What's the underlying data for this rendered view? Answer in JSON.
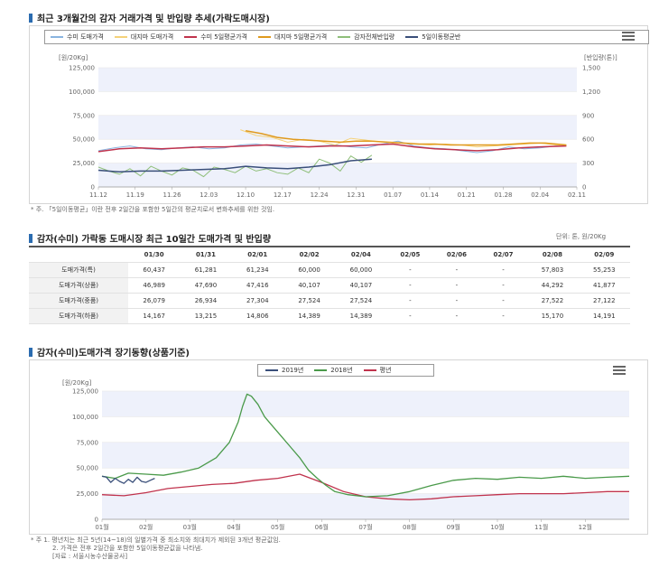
{
  "section1": {
    "title": "최근 3개월간의 감자 거래가격 및 반입량 추세(가락도매시장)",
    "legend": [
      {
        "label": "수미 도매가격",
        "color": "#8ab4e0"
      },
      {
        "label": "대지마 도매가격",
        "color": "#f5d27a"
      },
      {
        "label": "수미 5일평균가격",
        "color": "#c0334d"
      },
      {
        "label": "대지마 5일평균가격",
        "color": "#e09a1e"
      },
      {
        "label": "감자전체반입량",
        "color": "#8fbf7a"
      },
      {
        "label": "5일이동평균반",
        "color": "#3a4f7a"
      }
    ],
    "y_left_unit": "[원/20Kg]",
    "y_right_unit": "[반입량(톤)]",
    "note": "* 주. 「5일이동평균」이란 전후 2일간을 포함한 5일간의 평균치로서 변화추세를 위한 것임."
  },
  "section2": {
    "title": "감자(수미) 가락동 도매시장 최근 10일간 도매가격 및 반입량",
    "unit": "단위: 톤, 원/20Kg",
    "columns": [
      "01/30",
      "01/31",
      "02/01",
      "02/02",
      "02/04",
      "02/05",
      "02/06",
      "02/07",
      "02/08",
      "02/09"
    ],
    "rows": [
      {
        "label": "도매가격(특)",
        "values": [
          "60,437",
          "61,281",
          "61,234",
          "60,000",
          "60,000",
          "-",
          "-",
          "-",
          "57,803",
          "55,253"
        ]
      },
      {
        "label": "도매가격(상품)",
        "values": [
          "46,989",
          "47,690",
          "47,416",
          "40,107",
          "40,107",
          "-",
          "-",
          "-",
          "44,292",
          "41,877"
        ]
      },
      {
        "label": "도매가격(중품)",
        "values": [
          "26,079",
          "26,934",
          "27,304",
          "27,524",
          "27,524",
          "-",
          "-",
          "-",
          "27,522",
          "27,122"
        ]
      },
      {
        "label": "도매가격(하품)",
        "values": [
          "14,167",
          "13,215",
          "14,806",
          "14,389",
          "14,389",
          "-",
          "-",
          "-",
          "15,170",
          "14,191"
        ]
      }
    ]
  },
  "section3": {
    "title": "감자(수미)도매가격 장기동향(상품기준)",
    "legend": [
      {
        "label": "2019년",
        "color": "#3a4f7a"
      },
      {
        "label": "2018년",
        "color": "#4a9a4a"
      },
      {
        "label": "평년",
        "color": "#c0334d"
      }
    ],
    "y_unit": "[원/20Kg]",
    "notes": [
      "* 주 1. 평년치는 최근 5년(14~18)의 일별가격 중 최소치와 최대치가 제외된 3개년 평균값임.",
      "2. 가격은 전후 2일간을 포함한 5일이동평균값을 나타냄.",
      "[자료 : 서울시농수산물공사]"
    ]
  },
  "chart_data": [
    {
      "type": "line",
      "title": "최근 3개월간의 감자 거래가격 및 반입량 추세(가락도매시장)",
      "x_ticks": [
        "11.12",
        "11.19",
        "11.26",
        "12.03",
        "12.10",
        "12.17",
        "12.24",
        "12.31",
        "01.07",
        "01.14",
        "01.21",
        "01.28",
        "02.04",
        "02.11"
      ],
      "y_left_ticks": [
        "0",
        "25,000",
        "50,000",
        "75,000",
        "100,000",
        "125,000"
      ],
      "y_right_ticks": [
        "0",
        "300",
        "600",
        "900",
        "1,200",
        "1,500"
      ],
      "ylim": [
        0,
        125000
      ],
      "y2lim": [
        0,
        1500
      ],
      "x_day_range": [
        0,
        91
      ],
      "grid": true,
      "legend_position": "top",
      "series": [
        {
          "name": "수미 도매가격",
          "axis": "left",
          "color": "#8ab4e0",
          "x": [
            0,
            3,
            6,
            9,
            12,
            15,
            18,
            21,
            24,
            27,
            30,
            33,
            36,
            39,
            42,
            45,
            48,
            51,
            54,
            57,
            60,
            63,
            66,
            69,
            72,
            75,
            78,
            81,
            84,
            87,
            89
          ],
          "values": [
            38000,
            41000,
            43000,
            40000,
            39000,
            41000,
            42000,
            40000,
            41000,
            44000,
            45000,
            43000,
            41000,
            42000,
            43000,
            44000,
            42000,
            41000,
            45000,
            48000,
            43000,
            41000,
            40000,
            38000,
            36000,
            38000,
            42000,
            40000,
            41000,
            43000,
            44000
          ]
        },
        {
          "name": "대지마 도매가격",
          "axis": "left",
          "color": "#f5d27a",
          "x": [
            27,
            30,
            33,
            36,
            39,
            42,
            45,
            48,
            51,
            54,
            57,
            60,
            63,
            66,
            69,
            72,
            75,
            78,
            81,
            84,
            87,
            89
          ],
          "values": [
            60000,
            54000,
            52000,
            47000,
            50000,
            48000,
            44000,
            51000,
            49000,
            47000,
            46000,
            45000,
            44000,
            45000,
            44000,
            42000,
            43000,
            44000,
            45000,
            46000,
            44000,
            43000
          ]
        },
        {
          "name": "수미 5일평균가격",
          "axis": "left",
          "color": "#c0334d",
          "x": [
            0,
            4,
            8,
            12,
            16,
            20,
            24,
            28,
            32,
            36,
            40,
            44,
            48,
            52,
            56,
            60,
            64,
            68,
            72,
            76,
            80,
            84,
            89
          ],
          "values": [
            37000,
            40000,
            41000,
            40000,
            41000,
            42000,
            42000,
            43000,
            44000,
            43000,
            42000,
            43000,
            43000,
            44000,
            45000,
            42000,
            40000,
            39000,
            38000,
            39000,
            41000,
            42000,
            43000
          ]
        },
        {
          "name": "대지마 5일평균가격",
          "axis": "left",
          "color": "#e09a1e",
          "x": [
            28,
            31,
            34,
            37,
            40,
            43,
            46,
            49,
            52,
            55,
            58,
            61,
            64,
            67,
            70,
            73,
            76,
            79,
            82,
            85,
            89
          ],
          "values": [
            59000,
            56000,
            52000,
            50000,
            49000,
            48000,
            47000,
            48000,
            48000,
            47000,
            46000,
            45000,
            45000,
            44000,
            44000,
            44000,
            44000,
            45000,
            46000,
            46000,
            44000
          ]
        },
        {
          "name": "감자전체반입량",
          "axis": "right",
          "color": "#8fbf7a",
          "x": [
            0,
            2,
            4,
            6,
            8,
            10,
            12,
            14,
            16,
            18,
            20,
            22,
            24,
            26,
            28,
            30,
            32,
            34,
            36,
            38,
            40,
            42,
            44,
            46,
            48,
            50,
            52
          ],
          "values": [
            250,
            200,
            160,
            230,
            140,
            260,
            200,
            150,
            240,
            210,
            130,
            250,
            220,
            180,
            260,
            200,
            230,
            180,
            160,
            240,
            180,
            350,
            300,
            200,
            390,
            310,
            400
          ]
        },
        {
          "name": "5일이동평균반",
          "axis": "right",
          "color": "#3a4f7a",
          "x": [
            0,
            4,
            8,
            12,
            16,
            20,
            24,
            28,
            32,
            36,
            40,
            44,
            48,
            52
          ],
          "values": [
            210,
            190,
            200,
            200,
            210,
            220,
            230,
            260,
            240,
            230,
            250,
            280,
            330,
            350
          ]
        }
      ]
    },
    {
      "type": "line",
      "title": "감자(수미)도매가격 장기동향(상품기준)",
      "x_ticks": [
        "01월",
        "02월",
        "03월",
        "04월",
        "05월",
        "06월",
        "07월",
        "08월",
        "09월",
        "10월",
        "11월",
        "12월"
      ],
      "y_ticks": [
        "0",
        "25,000",
        "50,000",
        "75,000",
        "100,000",
        "125,000"
      ],
      "ylim": [
        0,
        125000
      ],
      "xlim": [
        0,
        12
      ],
      "grid": true,
      "legend_position": "top",
      "series": [
        {
          "name": "2019년",
          "color": "#3a4f7a",
          "x": [
            0,
            0.1,
            0.2,
            0.3,
            0.4,
            0.5,
            0.6,
            0.7,
            0.8,
            0.9,
            1.0,
            1.1,
            1.2
          ],
          "values": [
            42000,
            41000,
            36000,
            40000,
            37000,
            35000,
            39000,
            36000,
            41000,
            37000,
            36000,
            38000,
            40000
          ]
        },
        {
          "name": "2018년",
          "color": "#4a9a4a",
          "x": [
            0,
            0.3,
            0.6,
            1.0,
            1.4,
            1.8,
            2.2,
            2.6,
            2.9,
            3.1,
            3.2,
            3.3,
            3.4,
            3.55,
            3.7,
            3.9,
            4.1,
            4.3,
            4.5,
            4.7,
            4.9,
            5.1,
            5.3,
            5.6,
            6.0,
            6.5,
            7.0,
            7.5,
            8.0,
            8.5,
            9.0,
            9.5,
            10.0,
            10.5,
            11.0,
            11.5,
            12.0
          ],
          "values": [
            42000,
            40000,
            45000,
            44000,
            43000,
            46000,
            50000,
            60000,
            75000,
            95000,
            110000,
            122000,
            120000,
            112000,
            100000,
            90000,
            80000,
            70000,
            60000,
            48000,
            40000,
            33000,
            27000,
            24000,
            22000,
            23000,
            27000,
            33000,
            38000,
            40000,
            39000,
            41000,
            40000,
            42000,
            40000,
            41000,
            42000
          ]
        },
        {
          "name": "평년",
          "color": "#c0334d",
          "x": [
            0,
            0.5,
            1.0,
            1.5,
            2.0,
            2.5,
            3.0,
            3.5,
            4.0,
            4.5,
            5.0,
            5.5,
            6.0,
            6.5,
            7.0,
            7.5,
            8.0,
            8.5,
            9.0,
            9.5,
            10.0,
            10.5,
            11.0,
            11.5,
            12.0
          ],
          "values": [
            24000,
            23000,
            26000,
            30000,
            32000,
            34000,
            35000,
            38000,
            40000,
            44000,
            36000,
            27000,
            22000,
            20000,
            19000,
            20000,
            22000,
            23000,
            24000,
            25000,
            25000,
            25000,
            26000,
            27000,
            27000
          ]
        }
      ]
    }
  ]
}
